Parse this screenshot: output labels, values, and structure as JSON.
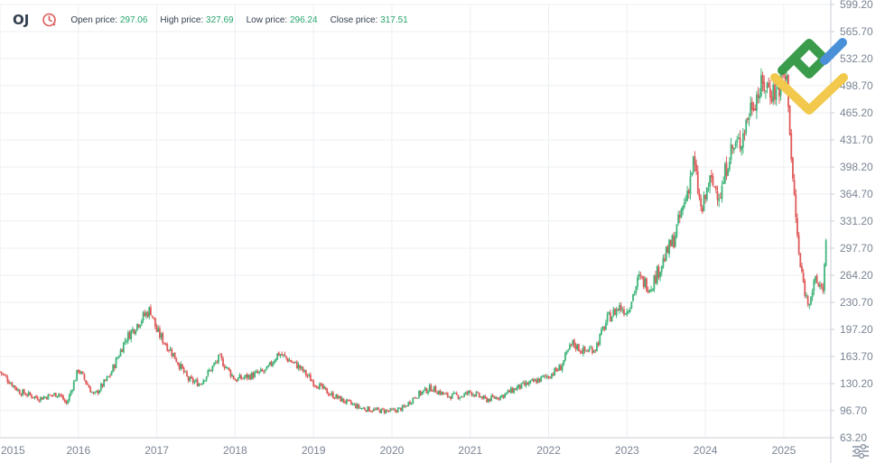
{
  "header": {
    "symbol": "OJ",
    "metrics": [
      {
        "label": "Open price:",
        "value": "297.06"
      },
      {
        "label": "High price:",
        "value": "327.69"
      },
      {
        "label": "Low price:",
        "value": "296.24"
      },
      {
        "label": "Close price:",
        "value": "317.51"
      }
    ]
  },
  "colors": {
    "up": "#3fb57a",
    "down": "#e05a5a",
    "grid": "#eceff3",
    "axis": "#c9ced6",
    "logo_green": "#3a9b4a",
    "logo_yellow": "#f2c94c",
    "logo_blue": "#4a90d9"
  },
  "chart_data": {
    "type": "line",
    "subtype": "candlestick",
    "title": "OJ",
    "xlabel": "",
    "ylabel": "",
    "ylim": [
      63.2,
      599.2
    ],
    "xlim": [
      2015.0,
      2025.6
    ],
    "y_ticks": [
      "599.20",
      "565.70",
      "532.20",
      "498.70",
      "465.20",
      "431.70",
      "398.20",
      "364.70",
      "331.20",
      "297.70",
      "264.20",
      "230.70",
      "197.20",
      "163.70",
      "130.20",
      "96.70",
      "63.20"
    ],
    "x_ticks": [
      "2015",
      "2016",
      "2017",
      "2018",
      "2019",
      "2020",
      "2021",
      "2022",
      "2023",
      "2024",
      "2025"
    ],
    "trend": {
      "x": [
        2015.0,
        2015.25,
        2015.5,
        2015.75,
        2015.85,
        2016.0,
        2016.2,
        2016.4,
        2016.6,
        2016.8,
        2016.92,
        2017.0,
        2017.2,
        2017.4,
        2017.55,
        2017.8,
        2018.0,
        2018.2,
        2018.4,
        2018.55,
        2018.8,
        2019.0,
        2019.2,
        2019.4,
        2019.6,
        2019.8,
        2020.0,
        2020.15,
        2020.3,
        2020.5,
        2020.7,
        2020.9,
        2021.0,
        2021.2,
        2021.4,
        2021.6,
        2021.8,
        2022.0,
        2022.15,
        2022.3,
        2022.45,
        2022.6,
        2022.75,
        2022.9,
        2023.0,
        2023.15,
        2023.3,
        2023.45,
        2023.6,
        2023.75,
        2023.85,
        2023.95,
        2024.05,
        2024.2,
        2024.3,
        2024.45,
        2024.6,
        2024.75,
        2024.9,
        2025.0,
        2025.05,
        2025.1,
        2025.2,
        2025.3,
        2025.4,
        2025.5,
        2025.55
      ],
      "close": [
        145,
        120,
        112,
        118,
        105,
        148,
        115,
        140,
        185,
        210,
        222,
        195,
        168,
        135,
        130,
        162,
        135,
        140,
        146,
        168,
        152,
        132,
        118,
        108,
        100,
        97,
        96,
        100,
        115,
        125,
        115,
        115,
        120,
        110,
        115,
        125,
        132,
        140,
        150,
        180,
        170,
        175,
        210,
        225,
        220,
        260,
        250,
        280,
        310,
        360,
        405,
        340,
        380,
        365,
        415,
        430,
        480,
        500,
        490,
        510,
        500,
        400,
        280,
        230,
        255,
        250,
        317
      ]
    }
  }
}
